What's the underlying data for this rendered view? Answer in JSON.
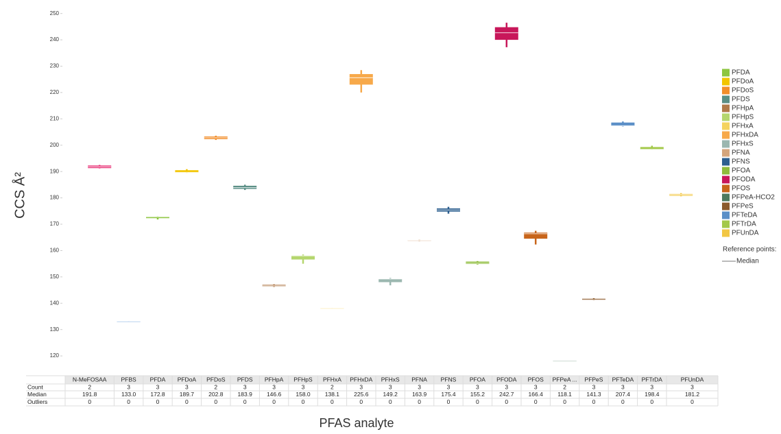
{
  "chart_data": {
    "type": "box",
    "y_label": "CCS Å²",
    "x_label": "PFAS analyte",
    "categories": [
      "N-MeFOSAA",
      "PFBS",
      "PFDA",
      "PFDoA",
      "PFDoS",
      "PFDS",
      "PFHpA",
      "PFHpS",
      "PFHxA",
      "PFHxDA",
      "PFHxS",
      "PFNA",
      "PFNS",
      "PFOA",
      "PFODA",
      "PFOS",
      "PFPeA ...",
      "PFPeS",
      "PFTeDA",
      "PFTrDA",
      "PFUnDA"
    ],
    "colors": [
      "#e8387a",
      "#4a86d4",
      "#8dc63f",
      "#f2c500",
      "#f28e2b",
      "#5b8f86",
      "#b07a4a",
      "#b5d66e",
      "#f4d35e",
      "#f7a94a",
      "#9bb7b0",
      "#d4a57c",
      "#2d5f8f",
      "#8fbc3c",
      "#c8175a",
      "#c8651b",
      "#4e7a5e",
      "#8b5a2b",
      "#5b8fc7",
      "#a3c94a",
      "#f2c744"
    ],
    "medians": [
      191.8,
      133.0,
      172.8,
      189.7,
      202.8,
      183.9,
      146.6,
      158.0,
      138.1,
      225.6,
      149.2,
      163.9,
      175.4,
      155.2,
      242.7,
      166.4,
      118.1,
      141.3,
      207.4,
      198.4,
      181.2
    ],
    "value_labels": [
      "191.8",
      "133.0",
      "172.8",
      "189.7",
      "202.8",
      "183.9",
      "146.6",
      "158.0",
      "138.1",
      "225.6",
      "149.2",
      "163.9",
      "175.4",
      "155.2",
      "242.7",
      "166.4",
      "118.1",
      "141.3",
      "207.4",
      "198.4",
      "181.2"
    ],
    "q1": [
      191.3,
      132.9,
      172.3,
      189.6,
      202.3,
      183.4,
      146.4,
      156.6,
      138.0,
      223.0,
      148.0,
      163.7,
      174.8,
      154.9,
      240.0,
      164.5,
      118.0,
      141.2,
      207.3,
      198.4,
      180.8
    ],
    "q3": [
      192.3,
      133.1,
      172.9,
      190.5,
      203.3,
      184.6,
      147.0,
      158.1,
      138.2,
      227.0,
      149.2,
      164.0,
      176.0,
      155.8,
      244.8,
      166.8,
      118.2,
      141.7,
      208.6,
      199.3,
      181.5
    ],
    "whislo": [
      191.2,
      132.9,
      171.8,
      189.5,
      202.0,
      183.0,
      146.2,
      155.0,
      138.0,
      220.0,
      146.8,
      163.6,
      174.0,
      154.7,
      237.2,
      162.3,
      118.0,
      141.1,
      207.1,
      198.3,
      180.6
    ],
    "whishi": [
      192.5,
      133.1,
      173.0,
      190.9,
      203.6,
      185.0,
      147.2,
      158.5,
      138.2,
      228.5,
      149.6,
      164.1,
      176.6,
      156.0,
      246.5,
      167.5,
      118.2,
      141.9,
      209.0,
      199.8,
      181.8
    ],
    "row_labels": [
      "Count",
      "Median",
      "Outliers"
    ],
    "counts": [
      2,
      3,
      3,
      3,
      2,
      3,
      3,
      3,
      2,
      3,
      3,
      3,
      3,
      3,
      3,
      3,
      2,
      3,
      3,
      3,
      3
    ],
    "outliers": [
      0,
      0,
      0,
      0,
      0,
      0,
      0,
      0,
      0,
      0,
      0,
      0,
      0,
      0,
      0,
      0,
      0,
      0,
      0,
      0,
      0
    ],
    "ylim": [
      113,
      252
    ],
    "yticks": [
      120,
      130,
      140,
      150,
      160,
      170,
      180,
      190,
      200,
      210,
      220,
      230,
      240,
      250
    ],
    "legend": [
      {
        "name": "PFDA",
        "color": "#8dc63f"
      },
      {
        "name": "PFDoA",
        "color": "#f2c500"
      },
      {
        "name": "PFDoS",
        "color": "#f28e2b"
      },
      {
        "name": "PFDS",
        "color": "#5b8f86"
      },
      {
        "name": "PFHpA",
        "color": "#b07a4a"
      },
      {
        "name": "PFHpS",
        "color": "#b5d66e"
      },
      {
        "name": "PFHxA",
        "color": "#f4d35e"
      },
      {
        "name": "PFHxDA",
        "color": "#f7a94a"
      },
      {
        "name": "PFHxS",
        "color": "#9bb7b0"
      },
      {
        "name": "PFNA",
        "color": "#d4a57c"
      },
      {
        "name": "PFNS",
        "color": "#2d5f8f"
      },
      {
        "name": "PFOA",
        "color": "#8fbc3c"
      },
      {
        "name": "PFODA",
        "color": "#c8175a"
      },
      {
        "name": "PFOS",
        "color": "#c8651b"
      },
      {
        "name": "PFPeA-HCO2",
        "color": "#4e7a5e"
      },
      {
        "name": "PFPeS",
        "color": "#8b5a2b"
      },
      {
        "name": "PFTeDA",
        "color": "#5b8fc7"
      },
      {
        "name": "PFTrDA",
        "color": "#a3c94a"
      },
      {
        "name": "PFUnDA",
        "color": "#f2c744"
      }
    ],
    "legend_title": "Reference points:",
    "reference_label": "Median"
  }
}
